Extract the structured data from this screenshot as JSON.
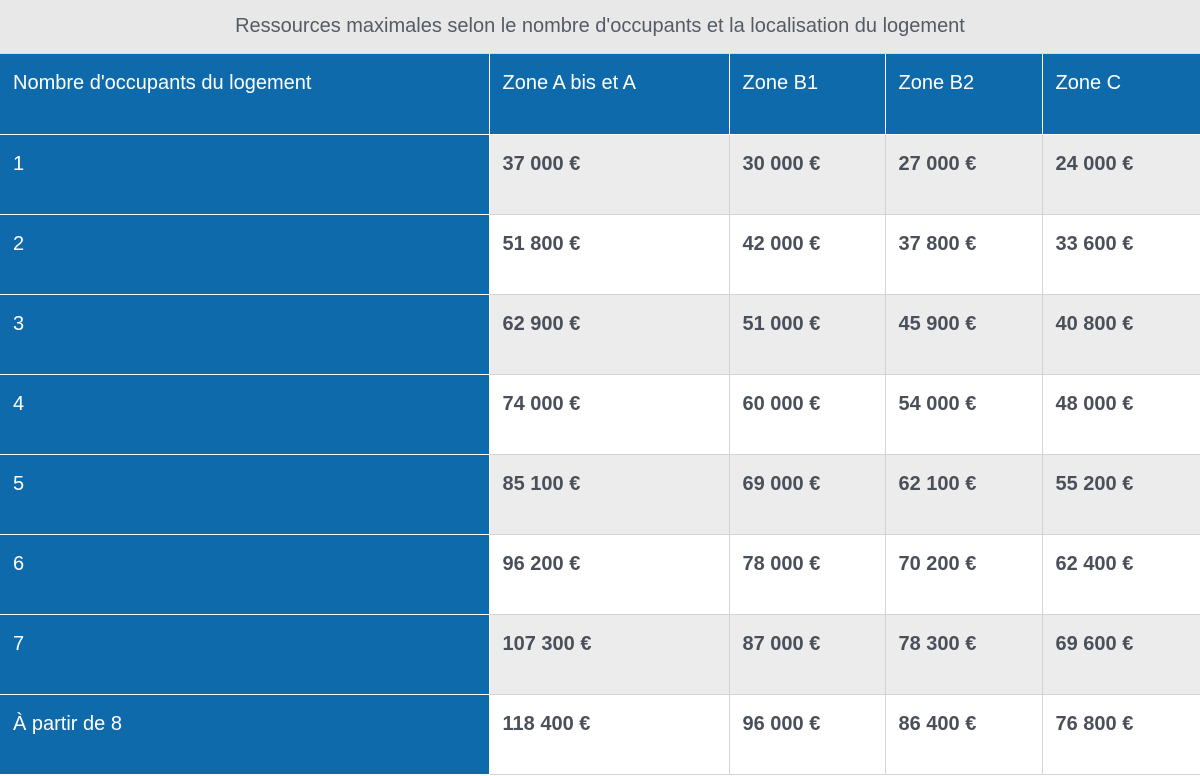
{
  "table": {
    "caption": "Ressources maximales selon le nombre d'occupants et la localisation du logement",
    "headers": [
      "Nombre d'occupants du logement",
      "Zone A bis et A",
      "Zone B1",
      "Zone B2",
      "Zone C"
    ],
    "rows": [
      {
        "label": "1",
        "values": [
          "37 000 €",
          "30 000 €",
          "27 000 €",
          "24 000 €"
        ]
      },
      {
        "label": "2",
        "values": [
          "51 800 €",
          "42 000 €",
          "37 800 €",
          "33 600 €"
        ]
      },
      {
        "label": "3",
        "values": [
          "62 900 €",
          "51 000 €",
          "45 900 €",
          "40 800 €"
        ]
      },
      {
        "label": "4",
        "values": [
          "74 000 €",
          "60 000 €",
          "54 000 €",
          "48 000 €"
        ]
      },
      {
        "label": "5",
        "values": [
          "85 100 €",
          "69 000 €",
          "62 100 €",
          "55 200 €"
        ]
      },
      {
        "label": "6",
        "values": [
          "96 200 €",
          "78 000 €",
          "70 200 €",
          "62 400 €"
        ]
      },
      {
        "label": "7",
        "values": [
          "107 300 €",
          "87 000 €",
          "78 300 €",
          "69 600 €"
        ]
      },
      {
        "label": "À partir de 8",
        "values": [
          "118 400 €",
          "96 000 €",
          "86 400 €",
          "76 800 €"
        ]
      }
    ]
  },
  "colors": {
    "header_blue": "#0f6aab",
    "stripe_gray": "#ececec",
    "caption_bg": "#e8e8e8",
    "value_text": "#4a505a"
  }
}
